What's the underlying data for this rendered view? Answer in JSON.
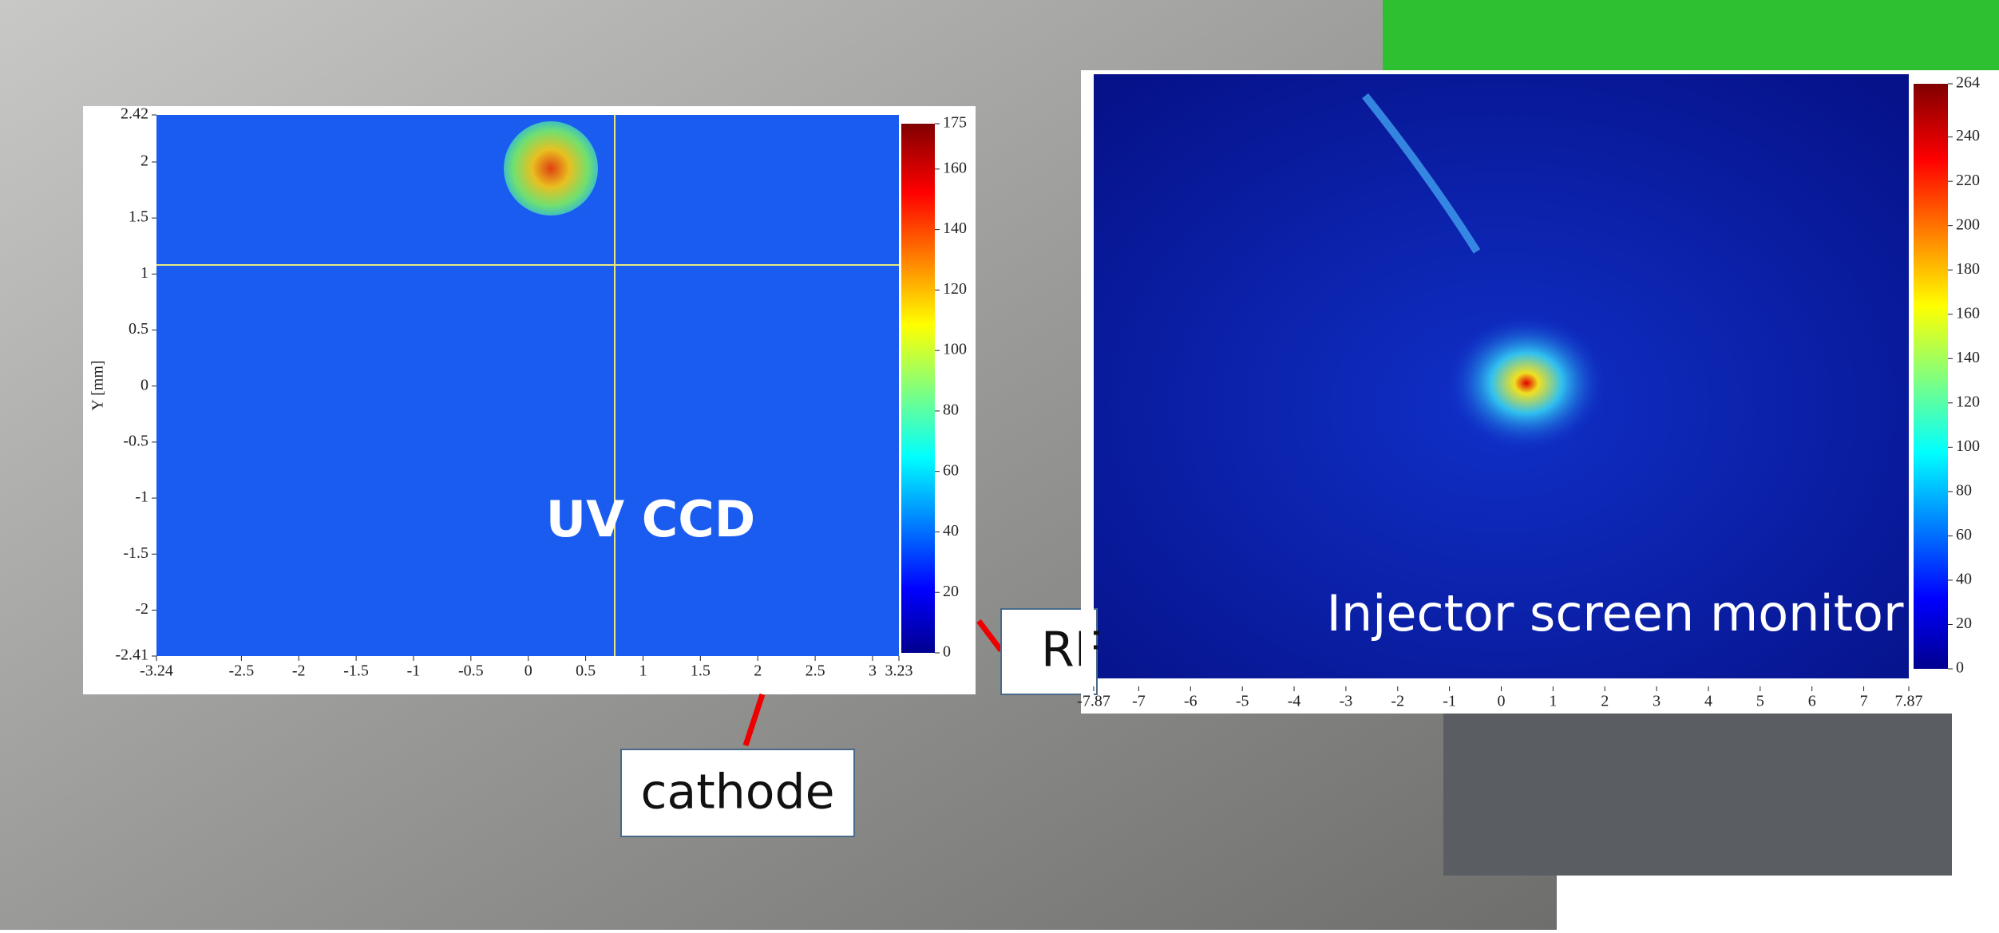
{
  "uv_ccd": {
    "label": "UV CCD",
    "y_axis_label": "Y [mm]",
    "xlim": [
      -3.24,
      3.23
    ],
    "xticks": [
      -3.24,
      -2.5,
      -2,
      -1.5,
      -1,
      -0.5,
      0,
      0.5,
      1,
      1.5,
      2,
      2.5,
      3,
      3.23
    ],
    "ylim": [
      -2.41,
      2.42
    ],
    "yticks": [
      2.42,
      2,
      1.5,
      1,
      0.5,
      0,
      -0.5,
      -1,
      -1.5,
      -2,
      -2.41
    ],
    "clim": [
      0,
      175
    ],
    "cticks": [
      0,
      20,
      40,
      60,
      80,
      100,
      120,
      140,
      160,
      175
    ]
  },
  "injector": {
    "label": "Injector screen monitor",
    "xlim": [
      -7.87,
      7.87
    ],
    "xticks": [
      -7.87,
      -7,
      -6,
      -5,
      -4,
      -3,
      -2,
      -1,
      0,
      1,
      2,
      3,
      4,
      5,
      6,
      7,
      7.87
    ],
    "clim": [
      0,
      264
    ],
    "cticks": [
      0,
      20,
      40,
      60,
      80,
      100,
      120,
      140,
      160,
      180,
      200,
      220,
      240,
      264
    ]
  },
  "callouts": {
    "cathode": "cathode",
    "rf": "RF"
  }
}
